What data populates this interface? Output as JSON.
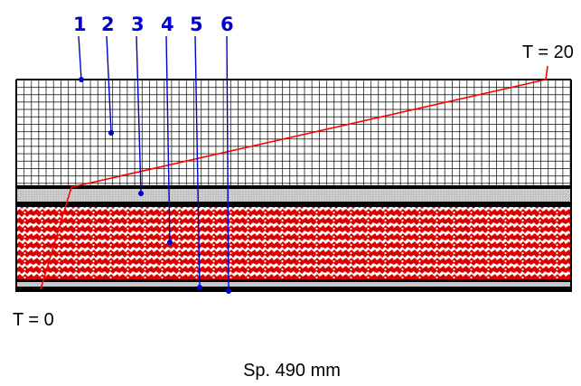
{
  "callouts": [
    "1",
    "2",
    "3",
    "4",
    "5",
    "6"
  ],
  "temperature_top": "T = 20",
  "temperature_bottom": "T = 0",
  "caption": "Sp. 490 mm",
  "colors": {
    "callout": "#0000cc",
    "temperature_line": "#ff0000",
    "brick_red": "#dd0000",
    "mortar": "#ffffff",
    "gap_layer": "#c8c8c8",
    "grid_line": "#000000"
  }
}
